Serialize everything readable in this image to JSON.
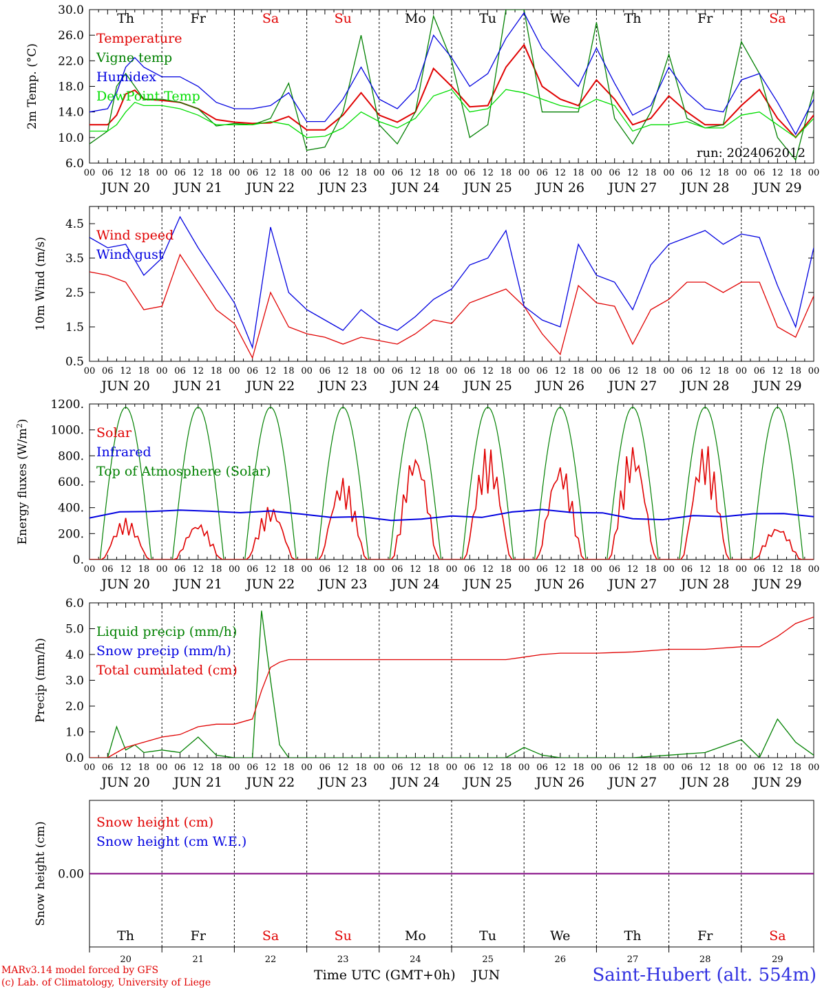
{
  "meta": {
    "run_label": "run: 2024062012",
    "model_line": "MARv3.14 model forced by GFS",
    "copyright_line": "(c) Lab. of Climatology, University of Liege",
    "station": "Saint-Hubert (alt. 554m)",
    "time_axis_label": "Time UTC (GMT+0h)",
    "month_label": "JUN"
  },
  "days": {
    "weekdays": [
      "Th",
      "Fr",
      "Sa",
      "Su",
      "Mo",
      "Tu",
      "We",
      "Th",
      "Fr",
      "Sa"
    ],
    "weekend_flags": [
      false,
      false,
      true,
      true,
      false,
      false,
      false,
      false,
      false,
      true
    ],
    "dates": [
      "JUN 20",
      "JUN 21",
      "JUN 22",
      "JUN 23",
      "JUN 24",
      "JUN 25",
      "JUN 26",
      "JUN 27",
      "JUN 28",
      "JUN 29"
    ],
    "day_numbers": [
      "20",
      "21",
      "22",
      "23",
      "24",
      "25",
      "26",
      "27",
      "28",
      "29"
    ],
    "hour_ticks": [
      "00",
      "06",
      "12",
      "18"
    ],
    "final_tick": "00"
  },
  "colors": {
    "red": "#e00000",
    "green": "#008000",
    "blue": "#0000e0",
    "lightgreen": "#00dd00",
    "purple": "#800080",
    "weekday": "#000000",
    "weekend": "#e00000"
  },
  "chart_data": [
    {
      "type": "line",
      "id": "temperature",
      "ylabel": "2m Temp. (°C)",
      "ylim": [
        6,
        30
      ],
      "yticks": [
        "6.0",
        "10.0",
        "14.0",
        "18.0",
        "22.0",
        "26.0",
        "30.0"
      ],
      "show_weekdays": true,
      "x_hours": [
        0,
        6,
        9,
        12,
        15,
        18,
        24,
        30,
        36,
        42,
        48,
        54,
        60,
        66,
        72,
        78,
        84,
        90,
        96,
        102,
        108,
        114,
        120,
        126,
        132,
        138,
        144,
        150,
        156,
        162,
        168,
        174,
        180,
        186,
        192,
        198,
        204,
        210,
        216,
        222,
        228,
        234,
        240
      ],
      "series": [
        {
          "name": "Temperature",
          "color": "red",
          "values": [
            12.0,
            12.0,
            13.5,
            16.8,
            17.4,
            16.0,
            15.8,
            15.5,
            14.5,
            12.8,
            12.4,
            12.2,
            12.3,
            13.3,
            11.2,
            11.2,
            13.5,
            17.0,
            13.5,
            12.4,
            14.0,
            20.8,
            18.0,
            14.8,
            15.0,
            21.0,
            24.5,
            18.0,
            16.0,
            15.0,
            19.0,
            16.0,
            12.0,
            13.0,
            16.5,
            14.0,
            12.0,
            12.0,
            15.0,
            17.5,
            13.0,
            10.0,
            13.5
          ]
        },
        {
          "name": "Vigne temp",
          "color": "green",
          "values": [
            9.0,
            11.0,
            18.0,
            20.0,
            18.0,
            16.0,
            16.0,
            15.5,
            14.5,
            11.8,
            12.2,
            12.0,
            13.0,
            18.5,
            8.0,
            8.5,
            14.0,
            26.0,
            12.0,
            9.0,
            14.0,
            29.0,
            22.0,
            10.0,
            12.0,
            30.0,
            30.0,
            14.0,
            14.0,
            14.0,
            28.0,
            13.0,
            9.0,
            14.0,
            23.0,
            13.0,
            11.5,
            12.0,
            25.0,
            20.0,
            10.0,
            6.5,
            17.5
          ]
        },
        {
          "name": "Humidex",
          "color": "blue",
          "values": [
            14.0,
            14.5,
            17.0,
            21.0,
            22.5,
            21.0,
            19.5,
            19.5,
            18.0,
            15.5,
            14.5,
            14.5,
            15.0,
            17.0,
            12.5,
            12.5,
            16.0,
            21.0,
            16.0,
            14.5,
            17.5,
            26.0,
            22.5,
            18.0,
            20.0,
            25.5,
            29.5,
            24.0,
            21.0,
            18.0,
            24.0,
            18.5,
            13.5,
            15.0,
            21.0,
            17.0,
            14.5,
            14.0,
            19.0,
            20.0,
            15.5,
            10.5,
            16.0
          ]
        },
        {
          "name": "DewPoint Temp",
          "color": "lightgreen",
          "values": [
            11.0,
            11.0,
            12.0,
            14.0,
            15.5,
            15.0,
            15.0,
            14.5,
            13.5,
            12.0,
            12.0,
            12.0,
            12.5,
            12.0,
            10.0,
            10.2,
            11.5,
            14.0,
            12.5,
            11.5,
            13.0,
            16.5,
            17.5,
            14.0,
            14.5,
            17.5,
            17.0,
            16.0,
            15.0,
            14.5,
            16.0,
            15.0,
            11.0,
            12.0,
            12.0,
            12.5,
            11.5,
            11.5,
            13.5,
            14.0,
            12.0,
            10.0,
            13.0
          ]
        }
      ]
    },
    {
      "type": "line",
      "id": "wind",
      "ylabel": "10m Wind (m/s)",
      "ylim": [
        0.5,
        5.0
      ],
      "yticks": [
        "0.5",
        "1.5",
        "2.5",
        "3.5",
        "4.5"
      ],
      "x_hours": [
        0,
        6,
        12,
        18,
        24,
        30,
        36,
        42,
        48,
        54,
        60,
        66,
        72,
        78,
        84,
        90,
        96,
        102,
        108,
        114,
        120,
        126,
        132,
        138,
        144,
        150,
        156,
        162,
        168,
        174,
        180,
        186,
        192,
        198,
        204,
        210,
        216,
        222,
        228,
        234,
        240
      ],
      "series": [
        {
          "name": "Wind speed",
          "color": "red",
          "values": [
            3.1,
            3.0,
            2.8,
            2.0,
            2.1,
            3.6,
            2.8,
            2.0,
            1.6,
            0.6,
            2.5,
            1.5,
            1.3,
            1.2,
            1.0,
            1.2,
            1.1,
            1.0,
            1.3,
            1.7,
            1.6,
            2.2,
            2.4,
            2.6,
            2.1,
            1.3,
            0.7,
            2.7,
            2.2,
            2.1,
            1.0,
            2.0,
            2.3,
            2.8,
            2.8,
            2.5,
            2.8,
            2.8,
            1.5,
            1.2,
            2.4
          ]
        },
        {
          "name": "Wind gust",
          "color": "blue",
          "values": [
            4.1,
            3.8,
            3.9,
            3.0,
            3.5,
            4.7,
            3.8,
            3.0,
            2.2,
            0.9,
            4.4,
            2.5,
            2.0,
            1.7,
            1.4,
            2.0,
            1.6,
            1.4,
            1.8,
            2.3,
            2.6,
            3.3,
            3.5,
            4.3,
            2.1,
            1.7,
            1.5,
            3.9,
            3.0,
            2.8,
            2.0,
            3.3,
            3.9,
            4.1,
            4.3,
            3.9,
            4.2,
            4.1,
            2.7,
            1.5,
            3.8
          ]
        }
      ]
    },
    {
      "type": "line",
      "id": "energy",
      "ylabel": "Energy fluxes (W/m2)",
      "ylim": [
        0,
        1200
      ],
      "yticks": [
        "0.",
        "200.",
        "400.",
        "600.",
        "800.",
        "1000.",
        "1200."
      ],
      "solar_peaks": [
        320,
        290,
        420,
        640,
        850,
        880,
        760,
        900,
        900,
        260
      ],
      "infrared_values": [
        320,
        360,
        380,
        375,
        370,
        370,
        365,
        355,
        330,
        320,
        310,
        310,
        330,
        335,
        360,
        385,
        370,
        350,
        320,
        310,
        330,
        340,
        350,
        350,
        340
      ],
      "toa_peak": 1175,
      "series": [
        {
          "name": "Solar",
          "color": "red"
        },
        {
          "name": "Infrared",
          "color": "blue"
        },
        {
          "name": "Top of Atmosphere (Solar)",
          "color": "green"
        }
      ]
    },
    {
      "type": "line",
      "id": "precip",
      "ylabel": "Precip (mm/h)",
      "ylim": [
        0,
        6
      ],
      "yticks": [
        "0.0",
        "1.0",
        "2.0",
        "3.0",
        "4.0",
        "5.0",
        "6.0"
      ],
      "x_hours": [
        0,
        6,
        9,
        12,
        15,
        18,
        24,
        30,
        36,
        42,
        48,
        54,
        57,
        60,
        63,
        66,
        72,
        84,
        96,
        108,
        120,
        126,
        132,
        138,
        144,
        150,
        156,
        168,
        180,
        192,
        204,
        216,
        222,
        228,
        234,
        240
      ],
      "series": [
        {
          "name": "Liquid precip (mm/h)",
          "color": "green",
          "values": [
            0,
            0,
            1.2,
            0.3,
            0.5,
            0.2,
            0.3,
            0.2,
            0.8,
            0.1,
            0,
            0,
            5.7,
            3.0,
            0.5,
            0,
            0,
            0,
            0,
            0,
            0,
            0,
            0,
            0,
            0.4,
            0.1,
            0,
            0,
            0,
            0.1,
            0.2,
            0.7,
            0,
            1.5,
            0.6,
            0.1
          ]
        },
        {
          "name": "Snow precip (mm/h)",
          "color": "blue",
          "values": []
        },
        {
          "name": "Total cumulated (cm)",
          "color": "red",
          "values": [
            0,
            0,
            0.2,
            0.4,
            0.5,
            0.6,
            0.8,
            0.9,
            1.2,
            1.3,
            1.3,
            1.5,
            2.6,
            3.5,
            3.7,
            3.8,
            3.8,
            3.8,
            3.8,
            3.8,
            3.8,
            3.8,
            3.8,
            3.8,
            3.9,
            4.0,
            4.05,
            4.05,
            4.1,
            4.2,
            4.2,
            4.3,
            4.3,
            4.7,
            5.2,
            5.45
          ]
        }
      ]
    },
    {
      "type": "line",
      "id": "snow",
      "ylabel": "Snow height (cm)",
      "ylim": [
        -1,
        1
      ],
      "yticks": [
        "0.00"
      ],
      "show_weekdays_bottom": true,
      "series": [
        {
          "name": "Snow height (cm)",
          "color": "red",
          "values": [
            0,
            0
          ]
        },
        {
          "name": "Snow height (cm W.E.)",
          "color": "blue",
          "values": [
            0,
            0
          ]
        }
      ]
    }
  ]
}
